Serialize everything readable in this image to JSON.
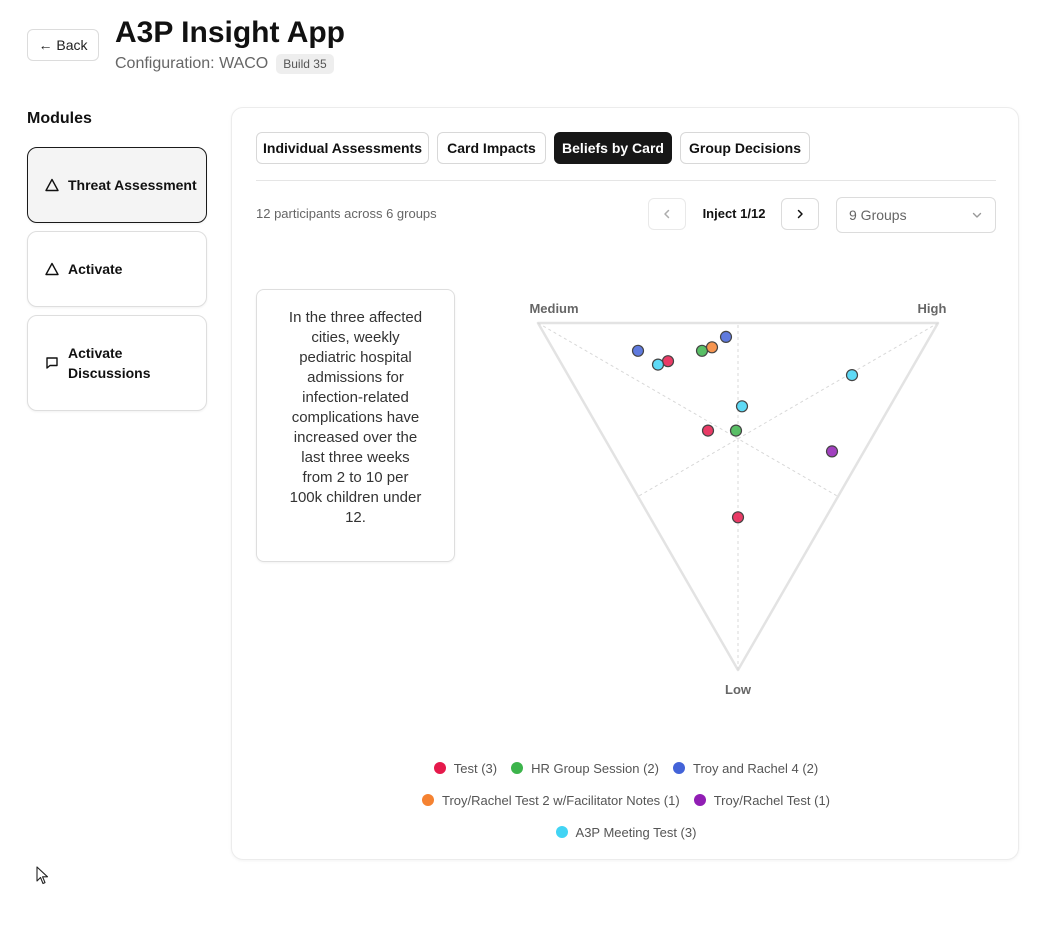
{
  "header": {
    "back_label": "← Back",
    "title": "A3P Insight App",
    "config_text": "Configuration: WACO",
    "build_badge": "Build 35"
  },
  "sidebar": {
    "heading": "Modules",
    "items": [
      {
        "label": "Threat Assessment",
        "icon": "triangle-icon",
        "active": true
      },
      {
        "label": "Activate",
        "icon": "triangle-icon",
        "active": false
      },
      {
        "label": "Activate Discussions",
        "icon": "message-square-icon",
        "active": false
      }
    ]
  },
  "tabs": [
    {
      "label": "Individual Assessments",
      "active": false
    },
    {
      "label": "Card Impacts",
      "active": false
    },
    {
      "label": "Beliefs by Card",
      "active": true
    },
    {
      "label": "Group Decisions",
      "active": false
    }
  ],
  "toolbar": {
    "participants_text": "12 participants across 6 groups",
    "inject_label": "Inject 1/12",
    "groups_select_value": "9 Groups"
  },
  "card": {
    "text": "In the three affected cities, weekly pediatric hospital admissions for infection-related complications have increased over the last three weeks from 2 to 10 per 100k children under 12."
  },
  "chart_data": {
    "type": "scatter",
    "title": "",
    "vertices": [
      "Medium",
      "High",
      "Low"
    ],
    "series": [
      {
        "name": "Test (3)",
        "color": "#e5194b",
        "points": [
          [
            0.62,
            0.27,
            0.11
          ],
          [
            0.42,
            0.27,
            0.31
          ],
          [
            0.22,
            0.22,
            0.56
          ]
        ]
      },
      {
        "name": "HR Group Session (2)",
        "color": "#3cb44b",
        "points": [
          [
            0.55,
            0.37,
            0.08
          ],
          [
            0.35,
            0.34,
            0.31
          ]
        ]
      },
      {
        "name": "Troy and Rachel 4 (2)",
        "color": "#4363d8",
        "points": [
          [
            0.71,
            0.21,
            0.08
          ],
          [
            0.51,
            0.45,
            0.04
          ]
        ]
      },
      {
        "name": "Troy/Rachel Test 2 w/Facilitator Notes (1)",
        "color": "#f58231",
        "points": [
          [
            0.53,
            0.4,
            0.07
          ]
        ]
      },
      {
        "name": "Troy/Rachel Test (1)",
        "color": "#911eb4",
        "points": [
          [
            0.08,
            0.55,
            0.37
          ]
        ]
      },
      {
        "name": "A3P Meeting Test (3)",
        "color": "#42d4f4",
        "points": [
          [
            0.64,
            0.24,
            0.12
          ],
          [
            0.37,
            0.39,
            0.24
          ],
          [
            0.14,
            0.71,
            0.15
          ]
        ]
      }
    ],
    "legend_rows": [
      [
        0,
        1,
        2
      ],
      [
        3,
        4
      ],
      [
        5
      ]
    ]
  }
}
